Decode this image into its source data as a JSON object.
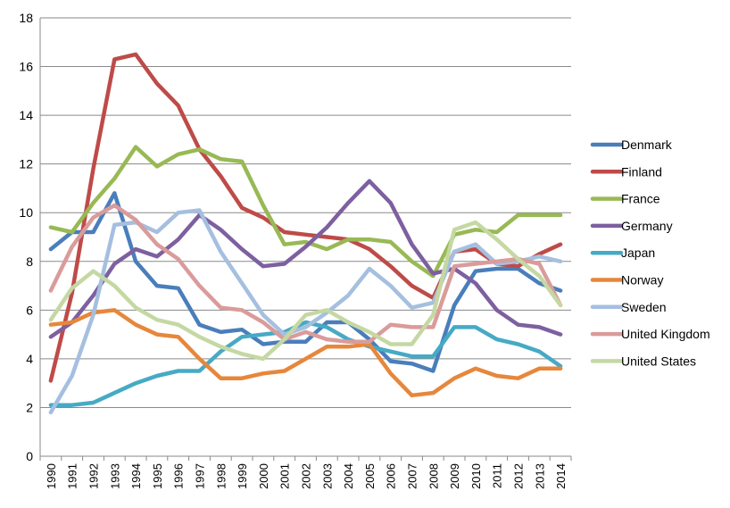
{
  "chart_data": {
    "type": "line",
    "title": "",
    "xlabel": "",
    "ylabel": "",
    "ylim": [
      0,
      18
    ],
    "yticks": [
      0,
      2,
      4,
      6,
      8,
      10,
      12,
      14,
      16,
      18
    ],
    "grid": true,
    "legend_position": "right",
    "x": [
      "1990",
      "1991",
      "1992",
      "1993",
      "1994",
      "1995",
      "1996",
      "1997",
      "1998",
      "1999",
      "2000",
      "2001",
      "2002",
      "2003",
      "2004",
      "2005",
      "2006",
      "2007",
      "2008",
      "2009",
      "2010",
      "2011",
      "2012",
      "2013",
      "2014"
    ],
    "series": [
      {
        "name": "Denmark",
        "color": "#4a7ebb",
        "values": [
          8.5,
          9.2,
          9.2,
          10.8,
          8.0,
          7.0,
          6.9,
          5.4,
          5.1,
          5.2,
          4.6,
          4.7,
          4.7,
          5.5,
          5.5,
          4.8,
          3.9,
          3.8,
          3.5,
          6.2,
          7.6,
          7.7,
          7.7,
          7.1,
          6.8
        ]
      },
      {
        "name": "Finland",
        "color": "#be4b48",
        "values": [
          3.1,
          6.7,
          11.8,
          16.3,
          16.5,
          15.3,
          14.4,
          12.6,
          11.5,
          10.2,
          9.8,
          9.2,
          9.1,
          9.0,
          8.9,
          8.5,
          7.8,
          7.0,
          6.5,
          8.4,
          8.5,
          7.9,
          7.8,
          8.3,
          8.7
        ]
      },
      {
        "name": "France",
        "color": "#98b954",
        "values": [
          9.4,
          9.2,
          10.4,
          11.4,
          12.7,
          11.9,
          12.4,
          12.6,
          12.2,
          12.1,
          10.3,
          8.7,
          8.8,
          8.5,
          8.9,
          8.9,
          8.8,
          8.0,
          7.4,
          9.1,
          9.3,
          9.2,
          9.9,
          9.9,
          9.9
        ]
      },
      {
        "name": "Germany",
        "color": "#7d60a0",
        "values": [
          4.9,
          5.5,
          6.6,
          7.9,
          8.5,
          8.2,
          8.9,
          9.9,
          9.3,
          8.5,
          7.8,
          7.9,
          8.6,
          9.4,
          10.4,
          11.3,
          10.4,
          8.7,
          7.5,
          7.7,
          7.1,
          6.0,
          5.4,
          5.3,
          5.0
        ]
      },
      {
        "name": "Japan",
        "color": "#46aac5",
        "values": [
          2.1,
          2.1,
          2.2,
          2.6,
          3.0,
          3.3,
          3.5,
          3.5,
          4.3,
          4.9,
          5.0,
          5.1,
          5.5,
          5.3,
          4.8,
          4.5,
          4.3,
          4.1,
          4.1,
          5.3,
          5.3,
          4.8,
          4.6,
          4.3,
          3.7
        ]
      },
      {
        "name": "Norway",
        "color": "#e6873c",
        "values": [
          5.4,
          5.5,
          5.9,
          6.0,
          5.4,
          5.0,
          4.9,
          4.0,
          3.2,
          3.2,
          3.4,
          3.5,
          4.0,
          4.5,
          4.5,
          4.6,
          3.4,
          2.5,
          2.6,
          3.2,
          3.6,
          3.3,
          3.2,
          3.6,
          3.6
        ]
      },
      {
        "name": "Sweden",
        "color": "#a5bfdf",
        "values": [
          1.8,
          3.3,
          5.8,
          9.5,
          9.6,
          9.2,
          10.0,
          10.1,
          8.4,
          7.1,
          5.8,
          5.0,
          5.3,
          5.9,
          6.6,
          7.7,
          7.0,
          6.1,
          6.3,
          8.4,
          8.7,
          7.9,
          8.0,
          8.2,
          8.0
        ]
      },
      {
        "name": "United Kingdom",
        "color": "#d99c9b",
        "values": [
          6.8,
          8.6,
          9.8,
          10.3,
          9.7,
          8.7,
          8.1,
          7.0,
          6.1,
          6.0,
          5.5,
          4.8,
          5.1,
          4.8,
          4.7,
          4.7,
          5.4,
          5.3,
          5.3,
          7.8,
          7.9,
          8.0,
          8.1,
          7.9,
          6.2
        ]
      },
      {
        "name": "United States",
        "color": "#c5d8a3",
        "values": [
          5.6,
          6.9,
          7.6,
          7.0,
          6.1,
          5.6,
          5.4,
          4.9,
          4.5,
          4.2,
          4.0,
          4.8,
          5.8,
          6.0,
          5.5,
          5.1,
          4.6,
          4.6,
          5.8,
          9.3,
          9.6,
          8.9,
          8.1,
          7.4,
          6.2
        ]
      }
    ]
  }
}
